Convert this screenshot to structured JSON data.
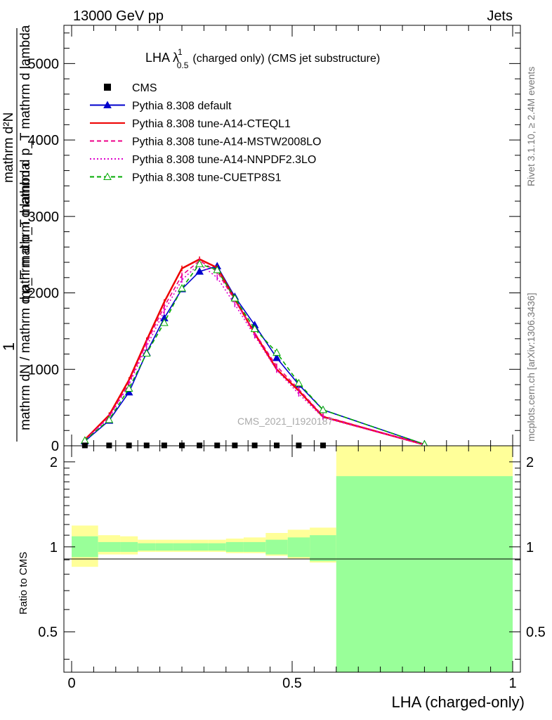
{
  "header": {
    "energy_label": "13000 GeV pp",
    "process_label": "Jets",
    "rivet_label": "Rivet 3.1.10, ≥ 2.4M events",
    "mcplots_label": "mcplots.cern.ch [arXiv:1306.3436]",
    "analysis_label": "CMS_2021_I1920187"
  },
  "chart_data": [
    {
      "type": "line",
      "title": "LHA λ",
      "title_sup": "1",
      "title_sub": "0.5",
      "title_rest": "(charged only) (CMS jet substructure)",
      "ylabel_numerator": "1",
      "ylabel_denominator": "mathrm dN / mathrm d p_T mathrm d lambda",
      "ylabel_side_top": "mathrm d²N",
      "ylabel_side_bottom": "mathrm d p_T mathrm d p_T mathrm d lambda",
      "ylim": [
        0,
        5500
      ],
      "yticks": [
        0,
        1000,
        2000,
        3000,
        4000,
        5000
      ],
      "ytick_labels": [
        "0",
        "1000",
        "2000",
        "3000",
        "4000",
        "5000"
      ],
      "xlim": [
        0,
        1
      ],
      "x_bin_edges": [
        0,
        0.06,
        0.11,
        0.15,
        0.19,
        0.23,
        0.27,
        0.31,
        0.35,
        0.39,
        0.44,
        0.49,
        0.54,
        0.6,
        1.0
      ],
      "data_points": {
        "name": "CMS",
        "x": [
          0.03,
          0.085,
          0.13,
          0.17,
          0.21,
          0.25,
          0.29,
          0.33,
          0.37,
          0.415,
          0.465,
          0.515,
          0.57
        ],
        "y": [
          5,
          5,
          5,
          5,
          5,
          5,
          5,
          5,
          5,
          5,
          5,
          5,
          5
        ]
      },
      "series": [
        {
          "name": "Pythia 8.308 default",
          "color": "#0000cc",
          "style": "solid",
          "marker": "triangle-filled",
          "x": [
            0.03,
            0.085,
            0.13,
            0.17,
            0.21,
            0.25,
            0.29,
            0.33,
            0.37,
            0.415,
            0.465,
            0.515,
            0.57,
            0.8
          ],
          "y": [
            60,
            330,
            700,
            1220,
            1670,
            2050,
            2280,
            2350,
            1950,
            1580,
            1150,
            800,
            470,
            20
          ]
        },
        {
          "name": "Pythia 8.308 tune-A14-CTEQL1",
          "color": "#ee0000",
          "style": "solid",
          "marker": "none",
          "x": [
            0.03,
            0.085,
            0.13,
            0.17,
            0.21,
            0.25,
            0.29,
            0.33,
            0.37,
            0.415,
            0.465,
            0.515,
            0.57,
            0.8
          ],
          "y": [
            80,
            400,
            860,
            1380,
            1880,
            2320,
            2440,
            2330,
            1920,
            1470,
            1000,
            720,
            380,
            15
          ]
        },
        {
          "name": "Pythia 8.308 tune-A14-MSTW2008LO",
          "color": "#ee0088",
          "style": "dashed",
          "marker": "none",
          "x": [
            0.03,
            0.085,
            0.13,
            0.17,
            0.21,
            0.25,
            0.29,
            0.33,
            0.37,
            0.415,
            0.465,
            0.515,
            0.57,
            0.8
          ],
          "y": [
            75,
            380,
            820,
            1350,
            1820,
            2230,
            2420,
            2280,
            1900,
            1480,
            1040,
            740,
            390,
            15
          ]
        },
        {
          "name": "Pythia 8.308 tune-A14-NNPDF2.3LO",
          "color": "#dd00cc",
          "style": "dotted",
          "marker": "none",
          "x": [
            0.03,
            0.085,
            0.13,
            0.17,
            0.21,
            0.25,
            0.29,
            0.33,
            0.37,
            0.415,
            0.465,
            0.515,
            0.57,
            0.8
          ],
          "y": [
            70,
            370,
            800,
            1300,
            1760,
            2170,
            2380,
            2200,
            1850,
            1440,
            990,
            680,
            370,
            12
          ]
        },
        {
          "name": "Pythia 8.308 tune-CUETP8S1",
          "color": "#00aa00",
          "style": "dashed",
          "marker": "triangle-open",
          "x": [
            0.03,
            0.085,
            0.13,
            0.17,
            0.21,
            0.25,
            0.29,
            0.33,
            0.37,
            0.415,
            0.465,
            0.515,
            0.57,
            0.8
          ],
          "y": [
            70,
            340,
            750,
            1210,
            1610,
            2060,
            2380,
            2300,
            1930,
            1530,
            1220,
            820,
            470,
            20
          ]
        }
      ]
    },
    {
      "type": "area",
      "ylabel": "Ratio to CMS",
      "xlabel": "LHA (charged-only)",
      "ylim": [
        0.36,
        2.28
      ],
      "log_y": true,
      "yticks": [
        0.5,
        1,
        2
      ],
      "ytick_labels": [
        "0.5",
        "1",
        "2"
      ],
      "xlim": [
        0,
        1
      ],
      "xticks": [
        0,
        0.5,
        1
      ],
      "xtick_labels": [
        "0",
        "0.5",
        "1"
      ],
      "bands": {
        "x_edges": [
          0,
          0.06,
          0.11,
          0.15,
          0.19,
          0.23,
          0.27,
          0.31,
          0.35,
          0.39,
          0.44,
          0.49,
          0.54,
          0.6,
          1.0
        ],
        "stat_lo": [
          0.92,
          0.96,
          0.96,
          0.97,
          0.97,
          0.97,
          0.97,
          0.97,
          0.96,
          0.96,
          0.94,
          0.92,
          0.89,
          0.0
        ],
        "stat_hi": [
          1.09,
          1.04,
          1.04,
          1.03,
          1.03,
          1.03,
          1.03,
          1.03,
          1.04,
          1.04,
          1.06,
          1.08,
          1.1,
          1.78
        ],
        "total_lo": [
          0.85,
          0.94,
          0.94,
          0.96,
          0.96,
          0.96,
          0.96,
          0.96,
          0.95,
          0.95,
          0.93,
          0.91,
          0.88,
          0.0
        ],
        "total_hi": [
          1.19,
          1.1,
          1.09,
          1.06,
          1.06,
          1.06,
          1.06,
          1.06,
          1.07,
          1.08,
          1.12,
          1.15,
          1.17,
          2.3
        ],
        "stat_color": "#99ff99",
        "total_color": "#ffff99"
      }
    }
  ]
}
